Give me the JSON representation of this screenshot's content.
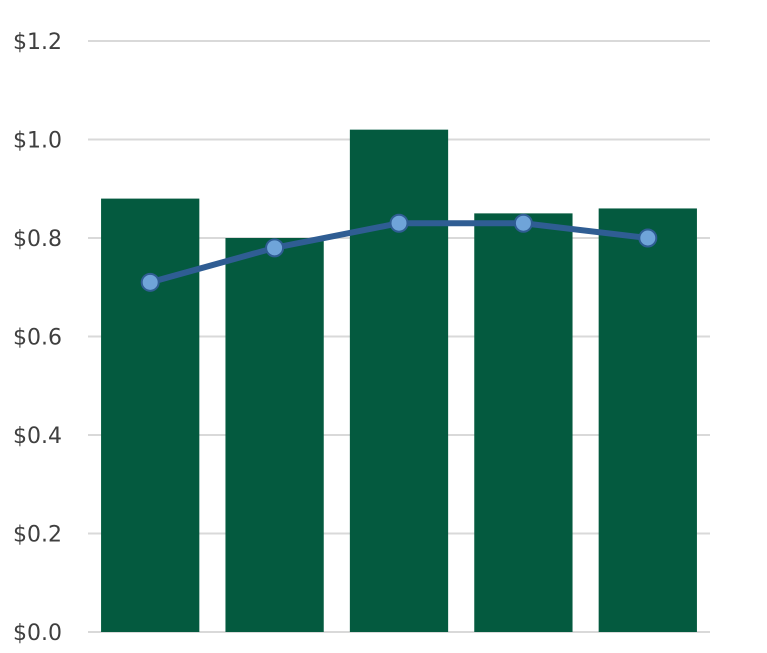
{
  "chart_data": {
    "type": "bar",
    "title": "",
    "xlabel": "",
    "ylabel": "",
    "categories": [
      "",
      "",
      "",
      "",
      ""
    ],
    "ylim": [
      0,
      1.2
    ],
    "y_ticks": [
      0.0,
      0.2,
      0.4,
      0.6,
      0.8,
      1.0,
      1.2
    ],
    "y_tick_labels": [
      "$0.0",
      "$0.2",
      "$0.4",
      "$0.6",
      "$0.8",
      "$1.0",
      "$1.2"
    ],
    "grid": true,
    "legend": "none",
    "series": [
      {
        "type": "bar",
        "color": "#045a3f",
        "values": [
          0.88,
          0.8,
          1.02,
          0.85,
          0.86
        ]
      },
      {
        "type": "line",
        "color": "#2f5d93",
        "marker_color": "#6fa4d9",
        "values": [
          0.71,
          0.78,
          0.83,
          0.83,
          0.8
        ]
      }
    ]
  }
}
